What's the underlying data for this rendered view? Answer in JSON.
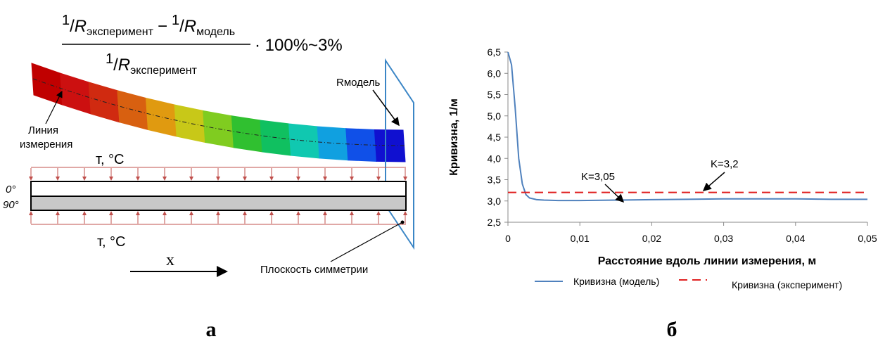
{
  "formula": {
    "one": "1",
    "slash": "/",
    "r": "R",
    "sub_exp": "эксперимент",
    "minus": "−",
    "sub_model": "модель",
    "tail": "· 100%~3%"
  },
  "diagram": {
    "r_model": "Rмодель",
    "line_label_1": "Линия",
    "line_label_2": "измерения",
    "temp_top": "т, °C",
    "temp_bottom": "т, °C",
    "layer_0": "0°",
    "layer_90": "90°",
    "x_axis": "x",
    "symmetry_plane": "Плоскость симметрии"
  },
  "panel_labels": [
    "а",
    "б"
  ],
  "chart_data": {
    "type": "line",
    "xlabel": "Расстояние вдоль линии измерения, м",
    "ylabel": "Кривизна, 1/м",
    "x": [
      0,
      0.0005,
      0.001,
      0.0015,
      0.002,
      0.0025,
      0.003,
      0.004,
      0.005,
      0.007,
      0.01,
      0.015,
      0.02,
      0.025,
      0.03,
      0.035,
      0.04,
      0.045,
      0.05
    ],
    "series": [
      {
        "name": "Кривизна (модель)",
        "color": "#4f81bd",
        "dashed": false,
        "values": [
          6.5,
          6.2,
          5.2,
          4.0,
          3.4,
          3.15,
          3.07,
          3.03,
          3.02,
          3.01,
          3.01,
          3.02,
          3.03,
          3.04,
          3.05,
          3.05,
          3.05,
          3.04,
          3.04
        ]
      },
      {
        "name": "Кривизна (эксперимент)",
        "color": "#e02020",
        "dashed": true,
        "values": [
          3.2,
          3.2,
          3.2,
          3.2,
          3.2,
          3.2,
          3.2,
          3.2,
          3.2,
          3.2,
          3.2,
          3.2,
          3.2,
          3.2,
          3.2,
          3.2,
          3.2,
          3.2,
          3.2
        ]
      }
    ],
    "annotations": [
      "K=3,05",
      "K=3,2"
    ],
    "xlim": [
      0,
      0.05
    ],
    "xticks": [
      0,
      {
        "value": 0.01,
        "label": "0,01"
      },
      {
        "value": 0.02,
        "label": "0,02"
      },
      {
        "value": 0.03,
        "label": "0,03"
      },
      {
        "value": 0.04,
        "label": "0,04"
      },
      {
        "value": 0.05,
        "label": "0,05"
      }
    ],
    "ylim": [
      2.5,
      6.5
    ],
    "yticks": [
      {
        "value": 2.5,
        "label": "2,5"
      },
      {
        "value": 3.0,
        "label": "3,0"
      },
      {
        "value": 3.5,
        "label": "3,5"
      },
      {
        "value": 4.0,
        "label": "4,0"
      },
      {
        "value": 4.5,
        "label": "4,5"
      },
      {
        "value": 5.0,
        "label": "5,0"
      },
      {
        "value": 5.5,
        "label": "5,5"
      },
      {
        "value": 6.0,
        "label": "6,0"
      },
      {
        "value": 6.5,
        "label": "6,5"
      }
    ]
  }
}
